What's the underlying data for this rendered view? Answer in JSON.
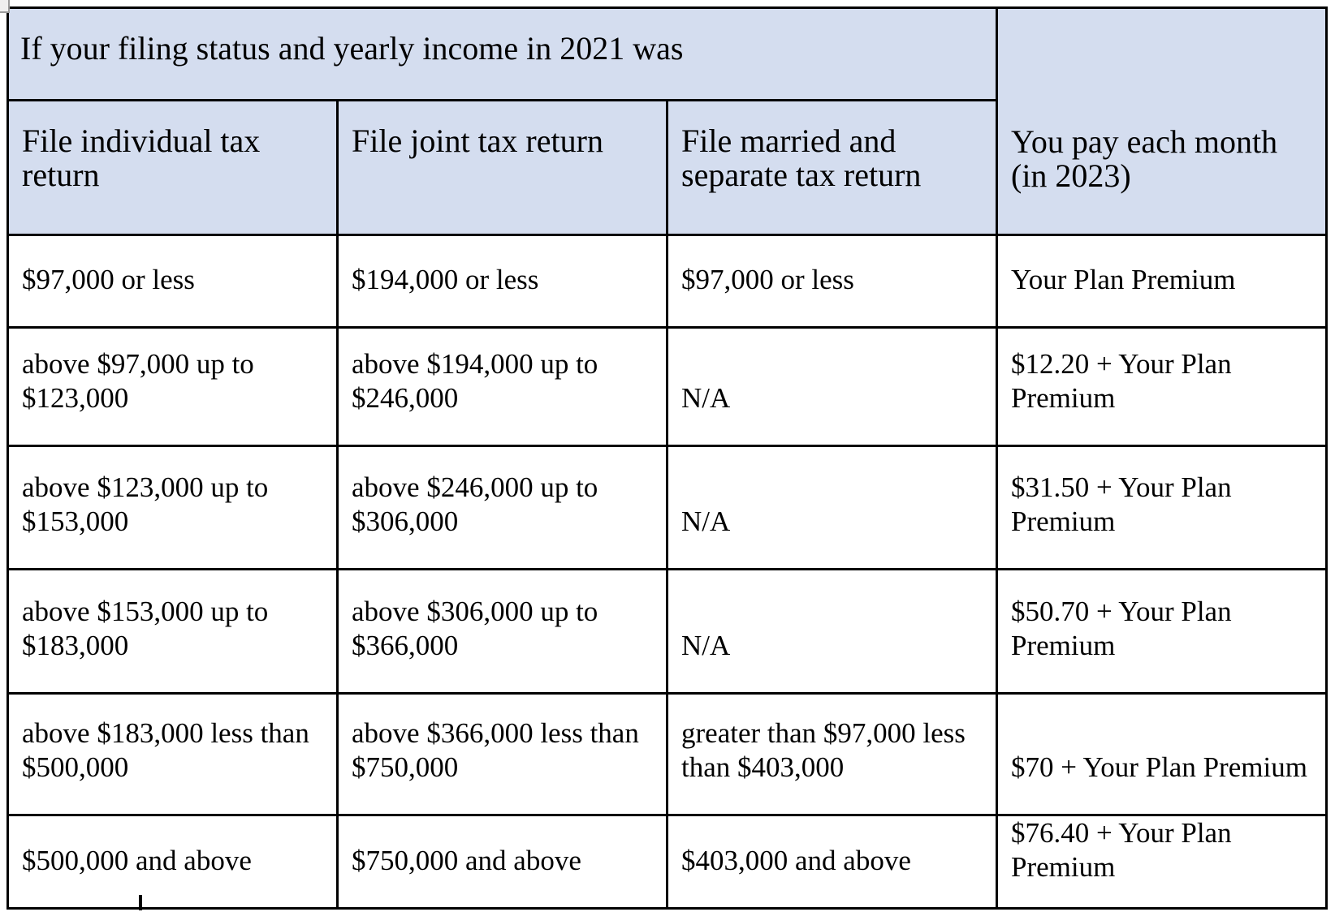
{
  "table": {
    "title": "If your filing status and yearly income in 2021 was",
    "columns": {
      "individual": "File individual tax\nreturn",
      "joint": "File joint tax return",
      "married_separate": "File married and\nseparate tax return",
      "pay": "You pay each month\n(in 2023)"
    },
    "rows": [
      {
        "individual": "$97,000 or less",
        "joint": "$194,000 or less",
        "married_separate": "$97,000 or less",
        "pay": "Your Plan Premium"
      },
      {
        "individual": "above $97,000 up to\n$123,000",
        "joint": "above $194,000 up to\n$246,000",
        "married_separate": "N/A",
        "pay": "$12.20 + Your Plan\nPremium"
      },
      {
        "individual": "above $123,000 up to\n$153,000",
        "joint": "above $246,000 up to\n$306,000",
        "married_separate": "N/A",
        "pay": "$31.50 + Your Plan\nPremium"
      },
      {
        "individual": "above $153,000 up to\n$183,000",
        "joint": "above $306,000 up to\n$366,000",
        "married_separate": "N/A",
        "pay": "$50.70 + Your Plan\nPremium"
      },
      {
        "individual": "above $183,000 less than\n$500,000",
        "joint": "above $366,000 less than\n$750,000",
        "married_separate": "greater than $97,000 less\nthan $403,000",
        "pay": "$70 + Your Plan Premium"
      },
      {
        "individual": "$500,000 and above",
        "joint": "$750,000 and above",
        "married_separate": "$403,000 and above",
        "pay": "$76.40 + Your Plan\nPremium"
      }
    ]
  },
  "colors": {
    "header_bg": "#d4ddef",
    "border": "#000000",
    "text": "#000000"
  }
}
